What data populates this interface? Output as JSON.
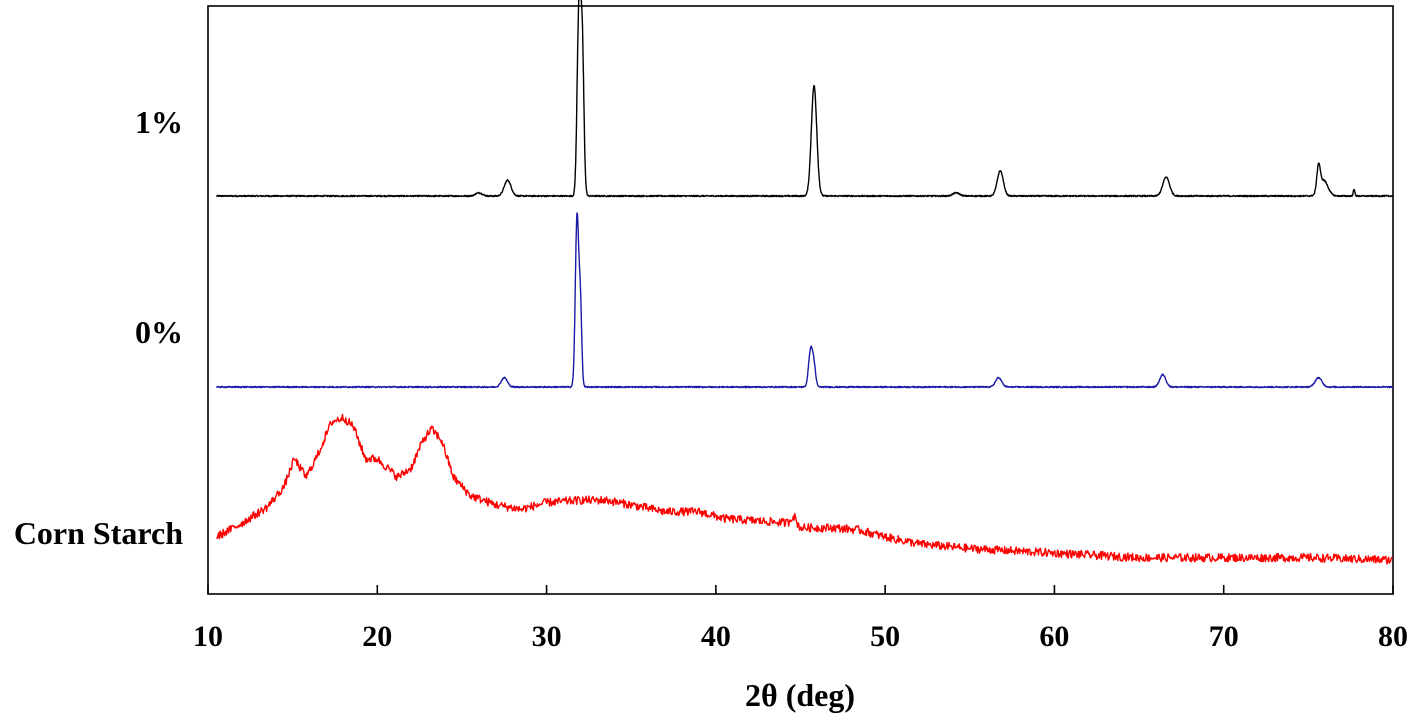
{
  "chart_data": {
    "type": "line",
    "title": "",
    "xlabel": "2θ (deg)",
    "ylabel": "",
    "xlim": [
      10,
      80
    ],
    "x_ticks": [
      "10",
      "20",
      "30",
      "40",
      "50",
      "60",
      "70",
      "80"
    ],
    "grid": false,
    "y_axis_labels_shown": false,
    "layout": "stacked-offset traces",
    "series": [
      {
        "name": "1%",
        "color": "#000000",
        "background": 0.06,
        "peaks": [
          {
            "x": 26.0,
            "h": 0.01,
            "w": 0.2
          },
          {
            "x": 27.7,
            "h": 0.05,
            "w": 0.2
          },
          {
            "x": 31.9,
            "h": 0.55,
            "w": 0.1
          },
          {
            "x": 32.1,
            "h": 0.5,
            "w": 0.1
          },
          {
            "x": 45.8,
            "h": 0.35,
            "w": 0.16
          },
          {
            "x": 54.2,
            "h": 0.01,
            "w": 0.2
          },
          {
            "x": 56.8,
            "h": 0.08,
            "w": 0.18
          },
          {
            "x": 66.6,
            "h": 0.06,
            "w": 0.2
          },
          {
            "x": 75.6,
            "h": 0.08,
            "w": 0.1
          },
          {
            "x": 75.9,
            "h": 0.05,
            "w": 0.25
          },
          {
            "x": 77.7,
            "h": 0.02,
            "w": 0.05
          }
        ]
      },
      {
        "name": "0%",
        "color": "#1a1aa6",
        "background": 0.04,
        "peaks": [
          {
            "x": 27.5,
            "h": 0.03,
            "w": 0.18
          },
          {
            "x": 31.8,
            "h": 0.55,
            "w": 0.1
          },
          {
            "x": 32.0,
            "h": 0.25,
            "w": 0.08
          },
          {
            "x": 45.6,
            "h": 0.12,
            "w": 0.12
          },
          {
            "x": 45.8,
            "h": 0.06,
            "w": 0.1
          },
          {
            "x": 56.7,
            "h": 0.03,
            "w": 0.18
          },
          {
            "x": 66.4,
            "h": 0.04,
            "w": 0.18
          },
          {
            "x": 75.6,
            "h": 0.03,
            "w": 0.2
          }
        ]
      },
      {
        "name": "Corn Starch",
        "color": "#ff0000",
        "profile": [
          [
            10.5,
            0.0
          ],
          [
            12.0,
            0.06
          ],
          [
            13.5,
            0.13
          ],
          [
            14.5,
            0.22
          ],
          [
            15.1,
            0.34
          ],
          [
            15.8,
            0.26
          ],
          [
            16.5,
            0.36
          ],
          [
            17.3,
            0.5
          ],
          [
            18.0,
            0.52
          ],
          [
            18.6,
            0.48
          ],
          [
            19.3,
            0.34
          ],
          [
            20.0,
            0.34
          ],
          [
            21.2,
            0.26
          ],
          [
            22.0,
            0.3
          ],
          [
            22.7,
            0.42
          ],
          [
            23.2,
            0.47
          ],
          [
            23.8,
            0.42
          ],
          [
            24.5,
            0.26
          ],
          [
            25.5,
            0.18
          ],
          [
            27.0,
            0.14
          ],
          [
            28.5,
            0.12
          ],
          [
            30.0,
            0.15
          ],
          [
            32.0,
            0.16
          ],
          [
            33.5,
            0.16
          ],
          [
            35.0,
            0.14
          ],
          [
            37.0,
            0.11
          ],
          [
            39.0,
            0.11
          ],
          [
            40.5,
            0.08
          ],
          [
            42.5,
            0.07
          ],
          [
            44.5,
            0.06
          ],
          [
            45.0,
            0.04
          ],
          [
            47.0,
            0.04
          ],
          [
            48.5,
            0.03
          ],
          [
            50.0,
            0.0
          ],
          [
            52.0,
            -0.03
          ],
          [
            55.0,
            -0.05
          ],
          [
            60.0,
            -0.07
          ],
          [
            65.0,
            -0.09
          ],
          [
            70.0,
            -0.09
          ],
          [
            75.0,
            -0.09
          ],
          [
            80.0,
            -0.1
          ]
        ],
        "bumps": [
          {
            "x": 44.6,
            "h": 0.035,
            "w": 0.15
          }
        ],
        "noise": 0.018
      }
    ]
  }
}
